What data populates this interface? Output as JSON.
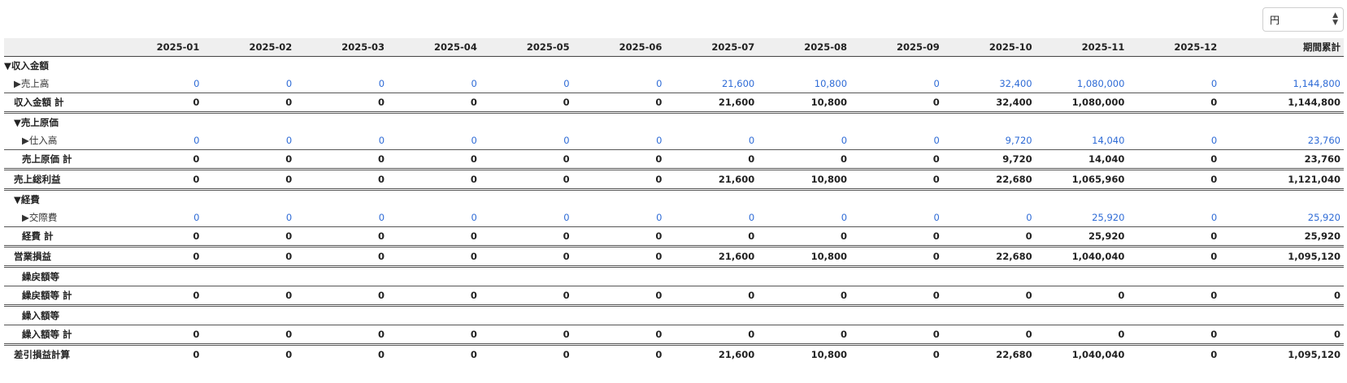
{
  "unit_select": {
    "value": "円"
  },
  "table": {
    "columns": [
      "",
      "2025-01",
      "2025-02",
      "2025-03",
      "2025-04",
      "2025-05",
      "2025-06",
      "2025-07",
      "2025-08",
      "2025-09",
      "2025-10",
      "2025-11",
      "2025-12",
      "期間累計"
    ],
    "rows": [
      {
        "label": "▼収入金額",
        "kind": "section",
        "level": 0,
        "values": []
      },
      {
        "label": "▶売上高",
        "kind": "detail",
        "level": 1,
        "values": [
          "0",
          "0",
          "0",
          "0",
          "0",
          "0",
          "21,600",
          "10,800",
          "0",
          "32,400",
          "1,080,000",
          "0",
          "1,144,800"
        ]
      },
      {
        "label": "収入金額 計",
        "kind": "total",
        "level": 1,
        "values": [
          "0",
          "0",
          "0",
          "0",
          "0",
          "0",
          "21,600",
          "10,800",
          "0",
          "32,400",
          "1,080,000",
          "0",
          "1,144,800"
        ]
      },
      {
        "label": "▼売上原価",
        "kind": "section",
        "level": 1,
        "values": []
      },
      {
        "label": "▶仕入高",
        "kind": "detail",
        "level": 2,
        "values": [
          "0",
          "0",
          "0",
          "0",
          "0",
          "0",
          "0",
          "0",
          "0",
          "9,720",
          "14,040",
          "0",
          "23,760"
        ]
      },
      {
        "label": "売上原価 計",
        "kind": "total",
        "level": 2,
        "values": [
          "0",
          "0",
          "0",
          "0",
          "0",
          "0",
          "0",
          "0",
          "0",
          "9,720",
          "14,040",
          "0",
          "23,760"
        ]
      },
      {
        "label": "売上総利益",
        "kind": "grand",
        "level": 1,
        "values": [
          "0",
          "0",
          "0",
          "0",
          "0",
          "0",
          "21,600",
          "10,800",
          "0",
          "22,680",
          "1,065,960",
          "0",
          "1,121,040"
        ]
      },
      {
        "label": "▼経費",
        "kind": "section",
        "level": 1,
        "values": []
      },
      {
        "label": "▶交際費",
        "kind": "detail",
        "level": 2,
        "values": [
          "0",
          "0",
          "0",
          "0",
          "0",
          "0",
          "0",
          "0",
          "0",
          "0",
          "25,920",
          "0",
          "25,920"
        ]
      },
      {
        "label": "経費 計",
        "kind": "total",
        "level": 2,
        "values": [
          "0",
          "0",
          "0",
          "0",
          "0",
          "0",
          "0",
          "0",
          "0",
          "0",
          "25,920",
          "0",
          "25,920"
        ]
      },
      {
        "label": "営業損益",
        "kind": "grand",
        "level": 1,
        "values": [
          "0",
          "0",
          "0",
          "0",
          "0",
          "0",
          "21,600",
          "10,800",
          "0",
          "22,680",
          "1,040,040",
          "0",
          "1,095,120"
        ]
      },
      {
        "label": "繰戻額等",
        "kind": "section-plain",
        "level": 2,
        "values": []
      },
      {
        "label": "繰戻額等 計",
        "kind": "total",
        "level": 2,
        "values": [
          "0",
          "0",
          "0",
          "0",
          "0",
          "0",
          "0",
          "0",
          "0",
          "0",
          "0",
          "0",
          "0"
        ]
      },
      {
        "label": "繰入額等",
        "kind": "section-plain",
        "level": 2,
        "values": []
      },
      {
        "label": "繰入額等 計",
        "kind": "total",
        "level": 2,
        "values": [
          "0",
          "0",
          "0",
          "0",
          "0",
          "0",
          "0",
          "0",
          "0",
          "0",
          "0",
          "0",
          "0"
        ]
      },
      {
        "label": "差引損益計算",
        "kind": "grand",
        "level": 1,
        "values": [
          "0",
          "0",
          "0",
          "0",
          "0",
          "0",
          "21,600",
          "10,800",
          "0",
          "22,680",
          "1,040,040",
          "0",
          "1,095,120"
        ]
      }
    ]
  }
}
